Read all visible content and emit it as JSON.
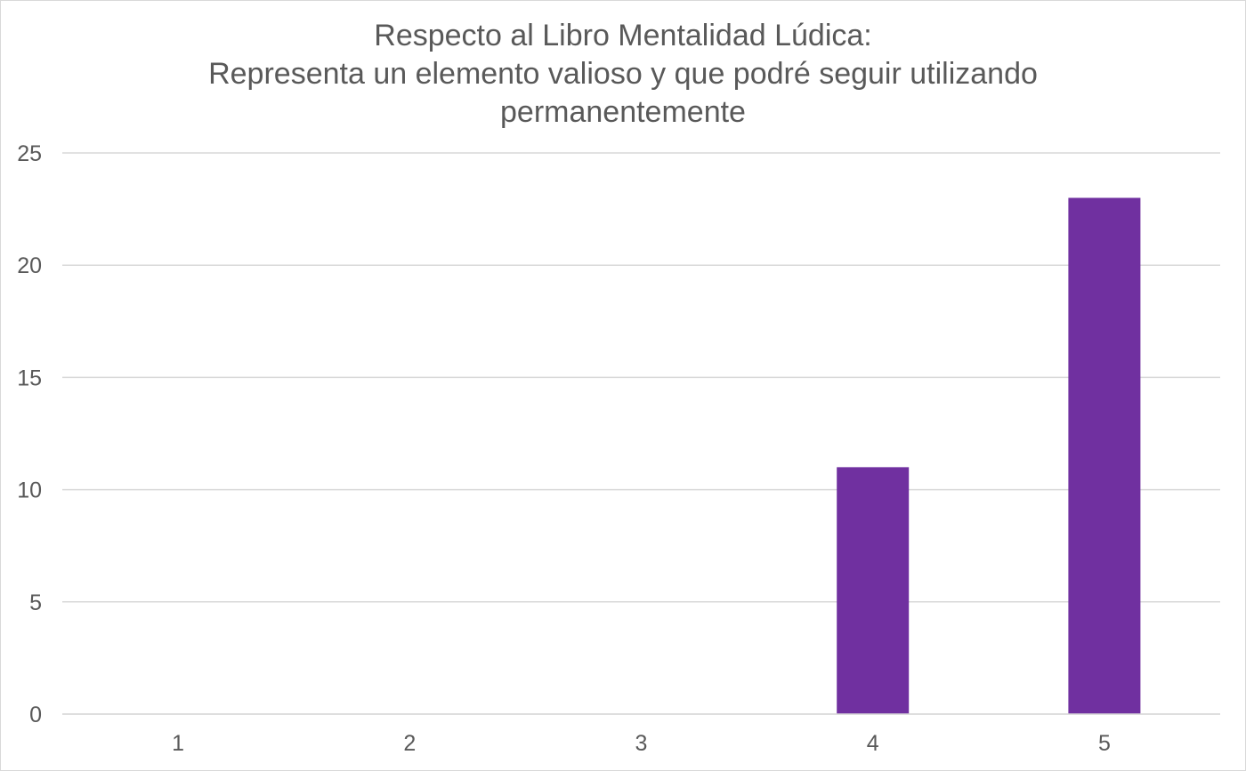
{
  "chart_data": {
    "type": "bar",
    "title_lines": [
      "Respecto al Libro Mentalidad Lúdica:",
      "Representa un elemento valioso y que podré seguir utilizando",
      "permanentemente"
    ],
    "categories": [
      "1",
      "2",
      "3",
      "4",
      "5"
    ],
    "values": [
      0,
      0,
      0,
      11,
      23
    ],
    "ylim": [
      0,
      25
    ],
    "yticks": [
      "0",
      "5",
      "10",
      "15",
      "20",
      "25"
    ],
    "xlabel": "",
    "ylabel": "",
    "grid": true,
    "legend": "none",
    "bar_color": "#7030a0",
    "gridline_color": "#d9d9d9",
    "text_color": "#595959"
  }
}
